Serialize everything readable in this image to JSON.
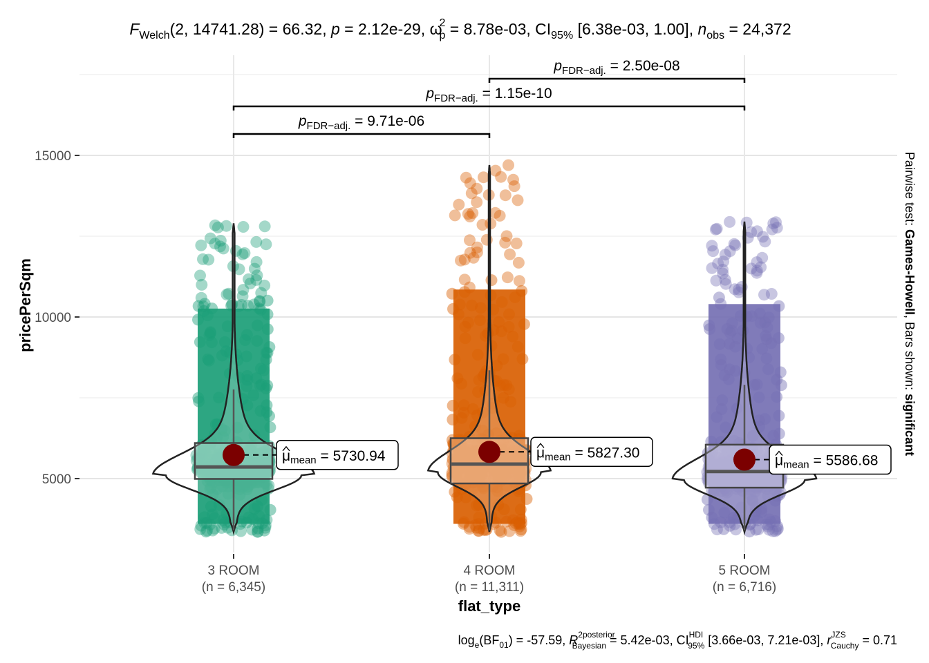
{
  "chart_data": {
    "type": "violin-box-scatter",
    "title": {
      "F": "F",
      "F_sub": "Welch",
      "df": "(2, 14741.28)",
      "stat_text": " = 66.32, ",
      "p": "p",
      "p_text": " = 2.12e-29, ",
      "omega": "ω",
      "omega_sup": "2",
      "omega_sub": "p",
      "omega_text": " = 8.78e-03, CI",
      "ci_sub": "95%",
      "ci_text": " [6.38e-03, 1.00], ",
      "n": "n",
      "n_sub": "obs",
      "n_text": " = 24,372"
    },
    "caption": {
      "log": "log",
      "log_sub": "e",
      "bf": "(BF",
      "bf_sub": "01",
      "bf_text": ") = -57.59, ",
      "r": "R",
      "r_sup": "2",
      "r_sup2": "posterior",
      "r_sub": "Bayesian",
      "r_text": " = 5.42e-03, CI",
      "ci_sup": "HDI",
      "ci_sub": "95%",
      "ci_text": " [3.66e-03, 7.21e-03], ",
      "rc": "r",
      "rc_sup": "JZS",
      "rc_sub": "Cauchy",
      "rc_text": " = 0.71"
    },
    "subtitle_right": {
      "prefix": "Pairwise test: ",
      "test": "Games-Howell",
      "mid": ", Bars shown: ",
      "shown": "significant"
    },
    "xlabel": "flat_type",
    "ylabel": "pricePerSqm",
    "ylim": [
      2900,
      18000
    ],
    "yticks": [
      5000,
      10000,
      15000
    ],
    "ytick_labels": [
      "5000",
      "10000",
      "15000"
    ],
    "minor_gridlines": [
      7500,
      12500,
      17500
    ],
    "grid": true,
    "categories": [
      "3 ROOM",
      "4 ROOM",
      "5 ROOM"
    ],
    "category_counts": [
      "(n = 6,345)",
      "(n = 11,311)",
      "(n = 6,716)"
    ],
    "groups": [
      {
        "name": "3 ROOM",
        "color": "#1B9E77",
        "mean": 5730.94,
        "mean_label": "5730.94",
        "q1": 4990,
        "median": 5360,
        "q3": 6100,
        "whisker_low": 3400,
        "whisker_high": 7760,
        "min": 3350,
        "max": 12900
      },
      {
        "name": "4 ROOM",
        "color": "#D95F02",
        "mean": 5827.3,
        "mean_label": "5827.30",
        "q1": 4850,
        "median": 5450,
        "q3": 6250,
        "whisker_low": 3400,
        "whisker_high": 8350,
        "min": 3350,
        "max": 14700
      },
      {
        "name": "5 ROOM",
        "color": "#7570B3",
        "mean": 5586.68,
        "mean_label": "5586.68",
        "q1": 4720,
        "median": 5220,
        "q3": 6050,
        "whisker_low": 3400,
        "whisker_high": 7900,
        "min": 3350,
        "max": 12950
      }
    ],
    "mean_symbol": "μ",
    "mean_sub": "mean",
    "mean_color": "#7B0000",
    "pairwise": [
      {
        "from": "3 ROOM",
        "to": "4 ROOM",
        "p_label": "p",
        "p_sub": "FDR−adj.",
        "p_value": " = 9.71e-06",
        "level": 1
      },
      {
        "from": "3 ROOM",
        "to": "5 ROOM",
        "p_label": "p",
        "p_sub": "FDR−adj.",
        "p_value": " = 1.15e-10",
        "level": 2
      },
      {
        "from": "4 ROOM",
        "to": "5 ROOM",
        "p_label": "p",
        "p_sub": "FDR−adj.",
        "p_value": " = 2.50e-08",
        "level": 3
      }
    ]
  }
}
